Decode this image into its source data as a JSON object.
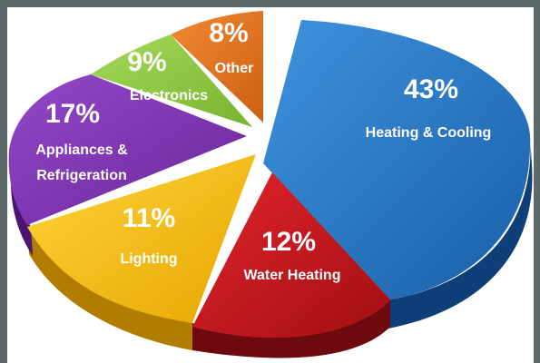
{
  "chart_data": {
    "type": "pie",
    "style": "3d-exploded",
    "title": "",
    "slices": [
      {
        "label": "Heating & Cooling",
        "value": 43,
        "pct_text": "43%",
        "color": "#1f6fc0"
      },
      {
        "label": "Water Heating",
        "value": 12,
        "pct_text": "12%",
        "color": "#c4121a"
      },
      {
        "label": "Lighting",
        "value": 11,
        "pct_text": "11%",
        "color": "#f2b705"
      },
      {
        "label": "Appliances & Refrigeration",
        "value": 17,
        "pct_text": "17%",
        "color": "#7a2fb0"
      },
      {
        "label": "Electronics",
        "value": 9,
        "pct_text": "9%",
        "color": "#8cc63f"
      },
      {
        "label": "Other",
        "value": 8,
        "pct_text": "8%",
        "color": "#e2711d"
      }
    ]
  },
  "labels": {
    "heating_pct": "43%",
    "heating_name": "Heating & Cooling",
    "water_pct": "12%",
    "water_name": "Water Heating",
    "lighting_pct": "11%",
    "lighting_name": "Lighting",
    "appliances_pct": "17%",
    "appliances_name_1": "Appliances &",
    "appliances_name_2": "Refrigeration",
    "electronics_pct": "9%",
    "electronics_name": "Electronics",
    "other_pct": "8%",
    "other_name": "Other"
  }
}
